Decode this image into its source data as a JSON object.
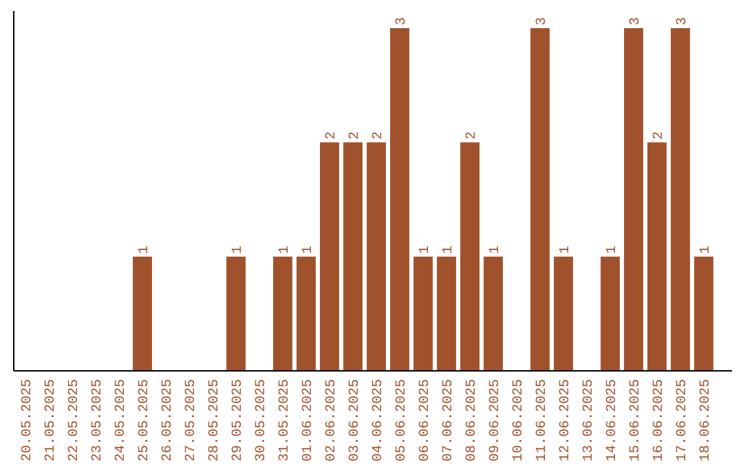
{
  "chart_data": {
    "type": "bar",
    "categories": [
      "20.05.2025",
      "21.05.2025",
      "22.05.2025",
      "23.05.2025",
      "24.05.2025",
      "25.05.2025",
      "26.05.2025",
      "27.05.2025",
      "28.05.2025",
      "29.05.2025",
      "30.05.2025",
      "31.05.2025",
      "01.06.2025",
      "02.06.2025",
      "03.06.2025",
      "04.06.2025",
      "05.06.2025",
      "06.06.2025",
      "07.06.2025",
      "08.06.2025",
      "09.06.2025",
      "10.06.2025",
      "11.06.2025",
      "12.06.2025",
      "13.06.2025",
      "14.06.2025",
      "15.06.2025",
      "16.06.2025",
      "17.06.2025",
      "18.06.2025"
    ],
    "values": [
      0,
      0,
      0,
      0,
      0,
      1,
      0,
      0,
      0,
      1,
      0,
      1,
      1,
      2,
      2,
      2,
      3,
      1,
      1,
      2,
      1,
      0,
      3,
      1,
      0,
      1,
      3,
      2,
      3,
      1
    ],
    "value_labels": [
      null,
      null,
      null,
      null,
      null,
      "1",
      null,
      null,
      null,
      "1",
      null,
      "1",
      "1",
      "2",
      "2",
      "2",
      "3",
      "1",
      "1",
      "2",
      "1",
      null,
      "3",
      "1",
      null,
      "1",
      "3",
      "2",
      "3",
      "1"
    ],
    "color": "#a0522d",
    "tick_labels": "x"
  }
}
